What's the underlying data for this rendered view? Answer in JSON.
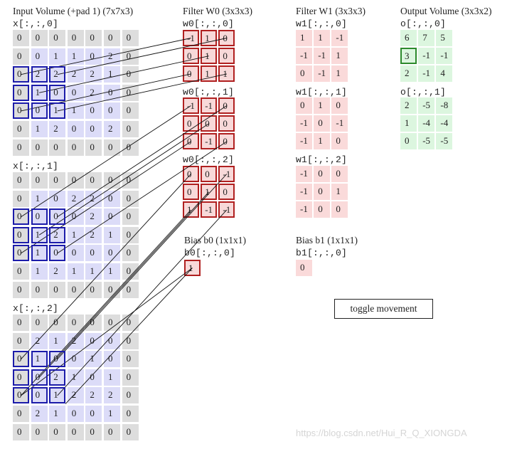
{
  "input": {
    "title": "Input Volume (+pad 1) (7x7x3)",
    "slices": [
      {
        "label": "x[:,:,0]",
        "rows": [
          [
            "0",
            "0",
            "0",
            "0",
            "0",
            "0",
            "0"
          ],
          [
            "0",
            "0",
            "1",
            "1",
            "0",
            "2",
            "0"
          ],
          [
            "0",
            "2",
            "2",
            "2",
            "2",
            "1",
            "0"
          ],
          [
            "0",
            "1",
            "0",
            "0",
            "2",
            "0",
            "0"
          ],
          [
            "0",
            "0",
            "1",
            "1",
            "0",
            "0",
            "0"
          ],
          [
            "0",
            "1",
            "2",
            "0",
            "0",
            "2",
            "0"
          ],
          [
            "0",
            "0",
            "0",
            "0",
            "0",
            "0",
            "0"
          ]
        ]
      },
      {
        "label": "x[:,:,1]",
        "rows": [
          [
            "0",
            "0",
            "0",
            "0",
            "0",
            "0",
            "0"
          ],
          [
            "0",
            "1",
            "0",
            "2",
            "2",
            "0",
            "0"
          ],
          [
            "0",
            "0",
            "0",
            "0",
            "2",
            "0",
            "0"
          ],
          [
            "0",
            "1",
            "2",
            "1",
            "2",
            "1",
            "0"
          ],
          [
            "0",
            "1",
            "0",
            "0",
            "0",
            "0",
            "0"
          ],
          [
            "0",
            "1",
            "2",
            "1",
            "1",
            "1",
            "0"
          ],
          [
            "0",
            "0",
            "0",
            "0",
            "0",
            "0",
            "0"
          ]
        ]
      },
      {
        "label": "x[:,:,2]",
        "rows": [
          [
            "0",
            "0",
            "0",
            "0",
            "0",
            "0",
            "0"
          ],
          [
            "0",
            "2",
            "1",
            "2",
            "0",
            "0",
            "0"
          ],
          [
            "0",
            "1",
            "0",
            "0",
            "1",
            "0",
            "0"
          ],
          [
            "0",
            "0",
            "2",
            "1",
            "0",
            "1",
            "0"
          ],
          [
            "0",
            "0",
            "1",
            "2",
            "2",
            "2",
            "0"
          ],
          [
            "0",
            "2",
            "1",
            "0",
            "0",
            "1",
            "0"
          ],
          [
            "0",
            "0",
            "0",
            "0",
            "0",
            "0",
            "0"
          ]
        ]
      }
    ]
  },
  "filter_w0": {
    "title": "Filter W0 (3x3x3)",
    "slices": [
      {
        "label": "w0[:,:,0]",
        "rows": [
          [
            "-1",
            "1",
            "0"
          ],
          [
            "0",
            "1",
            "0"
          ],
          [
            "0",
            "1",
            "1"
          ]
        ]
      },
      {
        "label": "w0[:,:,1]",
        "rows": [
          [
            "-1",
            "-1",
            "0"
          ],
          [
            "0",
            "0",
            "0"
          ],
          [
            "0",
            "-1",
            "0"
          ]
        ]
      },
      {
        "label": "w0[:,:,2]",
        "rows": [
          [
            "0",
            "0",
            "-1"
          ],
          [
            "0",
            "1",
            "0"
          ],
          [
            "1",
            "-1",
            "-1"
          ]
        ]
      }
    ]
  },
  "filter_w1": {
    "title": "Filter W1 (3x3x3)",
    "slices": [
      {
        "label": "w1[:,:,0]",
        "rows": [
          [
            "1",
            "1",
            "-1"
          ],
          [
            "-1",
            "-1",
            "1"
          ],
          [
            "0",
            "-1",
            "1"
          ]
        ]
      },
      {
        "label": "w1[:,:,1]",
        "rows": [
          [
            "0",
            "1",
            "0"
          ],
          [
            "-1",
            "0",
            "-1"
          ],
          [
            "-1",
            "1",
            "0"
          ]
        ]
      },
      {
        "label": "w1[:,:,2]",
        "rows": [
          [
            "-1",
            "0",
            "0"
          ],
          [
            "-1",
            "0",
            "1"
          ],
          [
            "-1",
            "0",
            "0"
          ]
        ]
      }
    ]
  },
  "output": {
    "title": "Output Volume (3x3x2)",
    "slices": [
      {
        "label": "o[:,:,0]",
        "rows": [
          [
            "6",
            "7",
            "5"
          ],
          [
            "3",
            "-1",
            "-1"
          ],
          [
            "2",
            "-1",
            "4"
          ]
        ]
      },
      {
        "label": "o[:,:,1]",
        "rows": [
          [
            "2",
            "-5",
            "-8"
          ],
          [
            "1",
            "-4",
            "-4"
          ],
          [
            "0",
            "-5",
            "-5"
          ]
        ]
      }
    ]
  },
  "bias_b0": {
    "title": "Bias b0 (1x1x1)",
    "label": "b0[:,:,0]",
    "value": "1"
  },
  "bias_b1": {
    "title": "Bias b1 (1x1x1)",
    "label": "b1[:,:,0]",
    "value": "0"
  },
  "toggle_label": "toggle movement",
  "watermark": "https://blog.csdn.net/Hui_R_Q_XIONGDA",
  "colors": {
    "padding": "#dddddd",
    "input": "#dcdcf8",
    "filter": "#f8d9d9",
    "filter_border": "#b02020",
    "output": "#dcf6df",
    "output_highlight": "#2c8a2c",
    "selection": "#1c1caa"
  }
}
